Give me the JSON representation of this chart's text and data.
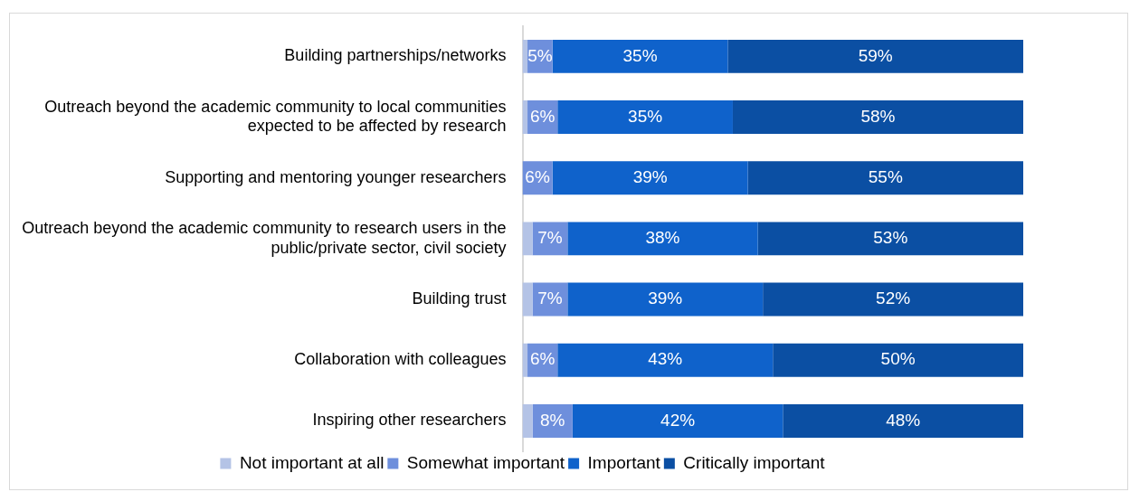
{
  "chart_data": {
    "type": "bar",
    "orientation": "horizontal",
    "stacked": true,
    "categories": [
      "Building partnerships/networks",
      "Outreach beyond the academic community to local communities expected to be affected by research",
      "Supporting and mentoring younger researchers",
      "Outreach beyond the academic community to research users in the public/private sector, civil society",
      "Building trust",
      "Collaboration with colleagues",
      "Inspiring other researchers"
    ],
    "series": [
      {
        "name": "Not important at all",
        "color": "#b4c3e6",
        "values": [
          1,
          1,
          0,
          2,
          2,
          1,
          2
        ],
        "value_labels": [
          null,
          null,
          null,
          null,
          null,
          null,
          null
        ]
      },
      {
        "name": "Somewhat important",
        "color": "#6e8fdc",
        "values": [
          5,
          6,
          6,
          7,
          7,
          6,
          8
        ],
        "value_labels": [
          "5%",
          "6%",
          "6%",
          "7%",
          "7%",
          "6%",
          "8%"
        ]
      },
      {
        "name": "Important",
        "color": "#0f62cb",
        "values": [
          35,
          35,
          39,
          38,
          39,
          43,
          42
        ],
        "value_labels": [
          "35%",
          "35%",
          "39%",
          "38%",
          "39%",
          "43%",
          "42%"
        ]
      },
      {
        "name": "Critically important",
        "color": "#0b4fa3",
        "values": [
          59,
          58,
          55,
          53,
          52,
          50,
          48
        ],
        "value_labels": [
          "59%",
          "58%",
          "55%",
          "53%",
          "52%",
          "50%",
          "48%"
        ]
      }
    ],
    "xlim": [
      0,
      100
    ],
    "tick_labels": "y",
    "legend": "bottom"
  }
}
